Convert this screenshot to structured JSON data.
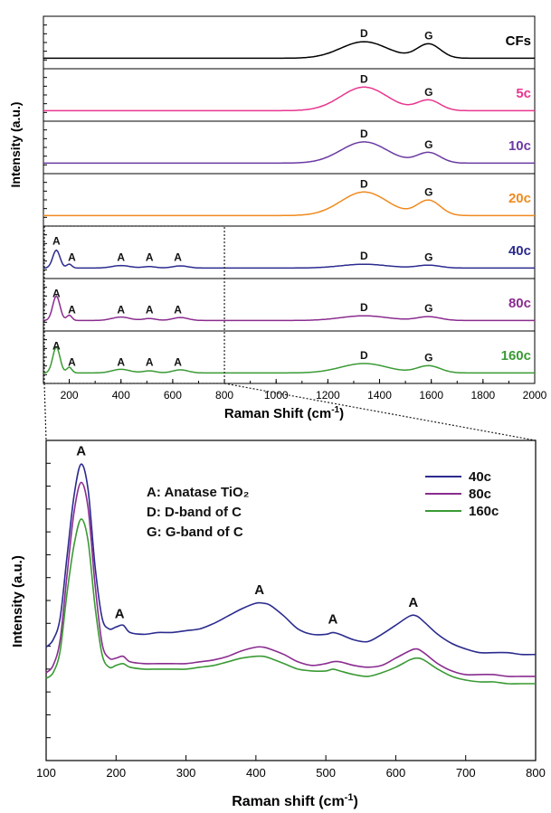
{
  "chart_data": [
    {
      "type": "line",
      "stacked_panels": true,
      "xlabel": "Raman Shift (cm",
      "xlabel_sup": "-1",
      "xlabel_tail": ")",
      "ylabel": "Intensity (a.u.)",
      "xlim": [
        100,
        2000
      ],
      "x_ticks": [
        200,
        400,
        600,
        800,
        1000,
        1200,
        1400,
        1600,
        1800,
        2000
      ],
      "peaks": {
        "D": 1340,
        "G": 1590,
        "A": [
          150,
          200,
          400,
          510,
          630
        ]
      },
      "panels": [
        {
          "name": "CFs",
          "color": "#000000",
          "anatase": false,
          "d_height": 0.35,
          "g_height": 0.3
        },
        {
          "name": "5c",
          "color": "#e8368f",
          "anatase": false,
          "d_height": 0.5,
          "g_height": 0.22
        },
        {
          "name": "10c",
          "color": "#6a3aa2",
          "anatase": false,
          "d_height": 0.45,
          "g_height": 0.22
        },
        {
          "name": "20c",
          "color": "#f08a1e",
          "anatase": false,
          "d_height": 0.5,
          "g_height": 0.32
        },
        {
          "name": "40c",
          "color": "#2b2b8f",
          "anatase": true,
          "a_height": 0.38,
          "d_height": 0.08,
          "g_height": 0.06
        },
        {
          "name": "80c",
          "color": "#8a2c8f",
          "anatase": true,
          "a_height": 0.52,
          "d_height": 0.1,
          "g_height": 0.08
        },
        {
          "name": "160c",
          "color": "#3a9a34",
          "anatase": true,
          "a_height": 0.55,
          "d_height": 0.2,
          "g_height": 0.15
        }
      ],
      "peak_labels": {
        "A": "A",
        "D": "D",
        "G": "G"
      }
    },
    {
      "type": "line",
      "xlabel": "Raman shift (cm",
      "xlabel_sup": "-1",
      "xlabel_tail": ")",
      "ylabel": "Intensity (a.u.)",
      "xlim": [
        100,
        800
      ],
      "x_ticks": [
        100,
        200,
        300,
        400,
        500,
        600,
        700,
        800
      ],
      "annotations": [
        "A: Anatase TiO₂",
        "D: D-band of C",
        "G: G-band of C"
      ],
      "peak_labels": [
        {
          "label": "A",
          "x": 150
        },
        {
          "label": "A",
          "x": 205
        },
        {
          "label": "A",
          "x": 405
        },
        {
          "label": "A",
          "x": 510
        },
        {
          "label": "A",
          "x": 625
        }
      ],
      "series": [
        {
          "name": "40c",
          "color": "#2b2b8f",
          "x": [
            100,
            110,
            120,
            130,
            140,
            150,
            160,
            170,
            180,
            190,
            200,
            210,
            220,
            240,
            260,
            280,
            300,
            320,
            340,
            360,
            380,
            400,
            410,
            420,
            440,
            460,
            480,
            500,
            510,
            520,
            540,
            560,
            580,
            600,
            620,
            630,
            640,
            660,
            680,
            700,
            720,
            740,
            760,
            780,
            800
          ],
          "y": [
            0.62,
            0.66,
            0.78,
            1.12,
            1.45,
            1.62,
            1.48,
            1.06,
            0.78,
            0.72,
            0.73,
            0.74,
            0.7,
            0.69,
            0.7,
            0.7,
            0.71,
            0.72,
            0.75,
            0.79,
            0.83,
            0.86,
            0.86,
            0.85,
            0.79,
            0.72,
            0.69,
            0.69,
            0.7,
            0.69,
            0.66,
            0.65,
            0.69,
            0.74,
            0.79,
            0.79,
            0.76,
            0.69,
            0.64,
            0.61,
            0.59,
            0.59,
            0.59,
            0.58,
            0.58
          ]
        },
        {
          "name": "80c",
          "color": "#8a2c8f",
          "x": [
            100,
            110,
            120,
            130,
            140,
            150,
            160,
            170,
            180,
            190,
            200,
            210,
            220,
            240,
            260,
            280,
            300,
            320,
            340,
            360,
            380,
            400,
            410,
            420,
            440,
            460,
            480,
            500,
            510,
            520,
            540,
            560,
            580,
            600,
            620,
            630,
            640,
            660,
            680,
            700,
            720,
            740,
            760,
            780,
            800
          ],
          "y": [
            0.48,
            0.52,
            0.66,
            1.02,
            1.36,
            1.52,
            1.38,
            0.96,
            0.64,
            0.56,
            0.56,
            0.57,
            0.54,
            0.53,
            0.53,
            0.53,
            0.53,
            0.54,
            0.55,
            0.57,
            0.6,
            0.62,
            0.62,
            0.61,
            0.58,
            0.54,
            0.52,
            0.53,
            0.54,
            0.54,
            0.52,
            0.51,
            0.52,
            0.56,
            0.6,
            0.61,
            0.59,
            0.53,
            0.49,
            0.47,
            0.47,
            0.47,
            0.46,
            0.46,
            0.46
          ]
        },
        {
          "name": "160c",
          "color": "#3a9a34",
          "x": [
            100,
            110,
            120,
            130,
            140,
            150,
            160,
            170,
            180,
            190,
            200,
            210,
            220,
            240,
            260,
            280,
            300,
            320,
            340,
            360,
            380,
            400,
            410,
            420,
            440,
            460,
            480,
            500,
            510,
            520,
            540,
            560,
            580,
            600,
            620,
            630,
            640,
            660,
            680,
            700,
            720,
            740,
            760,
            780,
            800
          ],
          "y": [
            0.45,
            0.48,
            0.6,
            0.92,
            1.18,
            1.32,
            1.2,
            0.84,
            0.58,
            0.51,
            0.52,
            0.53,
            0.51,
            0.5,
            0.5,
            0.5,
            0.5,
            0.51,
            0.52,
            0.54,
            0.56,
            0.57,
            0.57,
            0.56,
            0.53,
            0.5,
            0.49,
            0.49,
            0.5,
            0.49,
            0.47,
            0.46,
            0.48,
            0.51,
            0.55,
            0.56,
            0.55,
            0.5,
            0.46,
            0.44,
            0.43,
            0.43,
            0.42,
            0.42,
            0.42
          ]
        }
      ],
      "legend_position": "top-right"
    }
  ]
}
